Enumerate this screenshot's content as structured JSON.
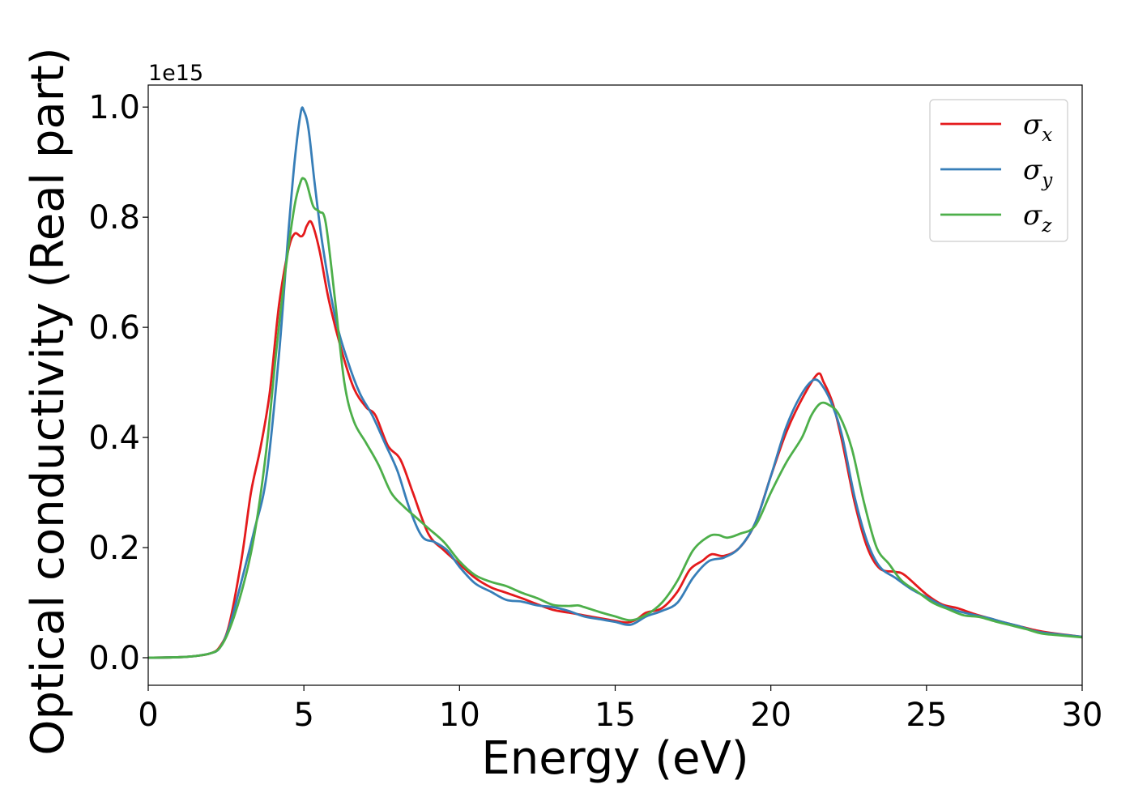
{
  "chart_data": {
    "type": "line",
    "xlabel": "Energy (eV)",
    "ylabel": "Optical conductivity (Real part)",
    "y_offset_text": "1e15",
    "xlim": [
      0,
      30
    ],
    "ylim": [
      -0.05,
      1.04
    ],
    "x_ticks": [
      0,
      5,
      10,
      15,
      20,
      25,
      30
    ],
    "x_tick_labels": [
      "0",
      "5",
      "10",
      "15",
      "20",
      "25",
      "30"
    ],
    "y_ticks": [
      0.0,
      0.2,
      0.4,
      0.6,
      0.8,
      1.0
    ],
    "y_tick_labels": [
      "0.0",
      "0.2",
      "0.4",
      "0.6",
      "0.8",
      "1.0"
    ],
    "grid": false,
    "legend_position": "top-right",
    "series": [
      {
        "name": "σx",
        "legend_main": "σ",
        "legend_sub": "x",
        "color": "#e41a1c",
        "points": [
          [
            0,
            0
          ],
          [
            1,
            0.001
          ],
          [
            1.5,
            0.003
          ],
          [
            2,
            0.008
          ],
          [
            2.3,
            0.02
          ],
          [
            2.6,
            0.06
          ],
          [
            3,
            0.18
          ],
          [
            3.3,
            0.3
          ],
          [
            3.6,
            0.38
          ],
          [
            3.9,
            0.48
          ],
          [
            4.2,
            0.64
          ],
          [
            4.5,
            0.74
          ],
          [
            4.7,
            0.77
          ],
          [
            4.9,
            0.765
          ],
          [
            5,
            0.77
          ],
          [
            5.1,
            0.785
          ],
          [
            5.25,
            0.79
          ],
          [
            5.5,
            0.74
          ],
          [
            5.8,
            0.65
          ],
          [
            6.2,
            0.56
          ],
          [
            6.6,
            0.49
          ],
          [
            7,
            0.455
          ],
          [
            7.3,
            0.44
          ],
          [
            7.7,
            0.385
          ],
          [
            8.1,
            0.36
          ],
          [
            8.5,
            0.3
          ],
          [
            9,
            0.225
          ],
          [
            9.5,
            0.195
          ],
          [
            10,
            0.17
          ],
          [
            10.5,
            0.145
          ],
          [
            11,
            0.128
          ],
          [
            11.5,
            0.118
          ],
          [
            12,
            0.108
          ],
          [
            12.5,
            0.097
          ],
          [
            13,
            0.087
          ],
          [
            13.5,
            0.082
          ],
          [
            14,
            0.077
          ],
          [
            14.5,
            0.072
          ],
          [
            15,
            0.067
          ],
          [
            15.4,
            0.064
          ],
          [
            15.7,
            0.07
          ],
          [
            16,
            0.082
          ],
          [
            16.5,
            0.09
          ],
          [
            17,
            0.12
          ],
          [
            17.4,
            0.16
          ],
          [
            17.8,
            0.176
          ],
          [
            18.1,
            0.188
          ],
          [
            18.5,
            0.185
          ],
          [
            19,
            0.2
          ],
          [
            19.5,
            0.245
          ],
          [
            20,
            0.33
          ],
          [
            20.5,
            0.41
          ],
          [
            21,
            0.47
          ],
          [
            21.5,
            0.515
          ],
          [
            21.7,
            0.5
          ],
          [
            22,
            0.46
          ],
          [
            22.3,
            0.39
          ],
          [
            22.7,
            0.28
          ],
          [
            23.1,
            0.2
          ],
          [
            23.5,
            0.162
          ],
          [
            24,
            0.156
          ],
          [
            24.3,
            0.15
          ],
          [
            25,
            0.115
          ],
          [
            25.5,
            0.097
          ],
          [
            26,
            0.09
          ],
          [
            26.5,
            0.08
          ],
          [
            27,
            0.072
          ],
          [
            27.5,
            0.064
          ],
          [
            28,
            0.057
          ],
          [
            28.5,
            0.05
          ],
          [
            29,
            0.045
          ],
          [
            30,
            0.038
          ]
        ]
      },
      {
        "name": "σy",
        "legend_main": "σ",
        "legend_sub": "y",
        "color": "#377eb8",
        "points": [
          [
            0,
            0
          ],
          [
            1,
            0.001
          ],
          [
            1.5,
            0.003
          ],
          [
            2,
            0.008
          ],
          [
            2.3,
            0.018
          ],
          [
            2.6,
            0.055
          ],
          [
            3,
            0.14
          ],
          [
            3.4,
            0.23
          ],
          [
            3.8,
            0.33
          ],
          [
            4.2,
            0.55
          ],
          [
            4.5,
            0.77
          ],
          [
            4.7,
            0.9
          ],
          [
            4.9,
            0.99
          ],
          [
            5,
            0.993
          ],
          [
            5.15,
            0.96
          ],
          [
            5.35,
            0.86
          ],
          [
            5.6,
            0.75
          ],
          [
            6,
            0.62
          ],
          [
            6.4,
            0.54
          ],
          [
            6.8,
            0.48
          ],
          [
            7.2,
            0.44
          ],
          [
            7.6,
            0.39
          ],
          [
            8,
            0.34
          ],
          [
            8.4,
            0.27
          ],
          [
            8.8,
            0.22
          ],
          [
            9.2,
            0.21
          ],
          [
            9.6,
            0.195
          ],
          [
            10,
            0.165
          ],
          [
            10.5,
            0.135
          ],
          [
            11,
            0.12
          ],
          [
            11.5,
            0.105
          ],
          [
            12,
            0.102
          ],
          [
            12.5,
            0.095
          ],
          [
            13,
            0.092
          ],
          [
            13.5,
            0.085
          ],
          [
            14,
            0.075
          ],
          [
            14.5,
            0.07
          ],
          [
            15,
            0.065
          ],
          [
            15.5,
            0.06
          ],
          [
            16,
            0.075
          ],
          [
            16.5,
            0.085
          ],
          [
            17,
            0.1
          ],
          [
            17.5,
            0.145
          ],
          [
            18,
            0.175
          ],
          [
            18.5,
            0.182
          ],
          [
            19,
            0.2
          ],
          [
            19.5,
            0.245
          ],
          [
            20,
            0.33
          ],
          [
            20.5,
            0.42
          ],
          [
            21,
            0.48
          ],
          [
            21.4,
            0.505
          ],
          [
            21.7,
            0.49
          ],
          [
            22,
            0.455
          ],
          [
            22.3,
            0.4
          ],
          [
            22.7,
            0.29
          ],
          [
            23.1,
            0.21
          ],
          [
            23.5,
            0.165
          ],
          [
            24,
            0.145
          ],
          [
            24.5,
            0.125
          ],
          [
            25,
            0.11
          ],
          [
            25.5,
            0.095
          ],
          [
            26,
            0.085
          ],
          [
            26.5,
            0.078
          ],
          [
            27,
            0.072
          ],
          [
            27.5,
            0.064
          ],
          [
            28,
            0.057
          ],
          [
            28.5,
            0.048
          ],
          [
            29,
            0.044
          ],
          [
            30,
            0.038
          ]
        ]
      },
      {
        "name": "σz",
        "legend_main": "σ",
        "legend_sub": "z",
        "color": "#4daf4a",
        "points": [
          [
            0,
            0
          ],
          [
            1,
            0.001
          ],
          [
            1.5,
            0.003
          ],
          [
            2,
            0.008
          ],
          [
            2.3,
            0.018
          ],
          [
            2.6,
            0.05
          ],
          [
            3,
            0.12
          ],
          [
            3.4,
            0.22
          ],
          [
            3.8,
            0.38
          ],
          [
            4.1,
            0.55
          ],
          [
            4.4,
            0.7
          ],
          [
            4.7,
            0.82
          ],
          [
            4.9,
            0.865
          ],
          [
            5,
            0.87
          ],
          [
            5.1,
            0.86
          ],
          [
            5.3,
            0.82
          ],
          [
            5.5,
            0.81
          ],
          [
            5.7,
            0.79
          ],
          [
            6,
            0.65
          ],
          [
            6.3,
            0.5
          ],
          [
            6.6,
            0.43
          ],
          [
            7,
            0.39
          ],
          [
            7.4,
            0.35
          ],
          [
            7.8,
            0.3
          ],
          [
            8.2,
            0.275
          ],
          [
            8.6,
            0.255
          ],
          [
            9,
            0.235
          ],
          [
            9.5,
            0.21
          ],
          [
            10,
            0.175
          ],
          [
            10.5,
            0.15
          ],
          [
            11,
            0.138
          ],
          [
            11.5,
            0.13
          ],
          [
            12,
            0.118
          ],
          [
            12.5,
            0.108
          ],
          [
            13,
            0.096
          ],
          [
            13.5,
            0.094
          ],
          [
            13.8,
            0.095
          ],
          [
            14,
            0.092
          ],
          [
            14.5,
            0.083
          ],
          [
            15,
            0.075
          ],
          [
            15.5,
            0.068
          ],
          [
            16,
            0.078
          ],
          [
            16.5,
            0.1
          ],
          [
            17,
            0.14
          ],
          [
            17.5,
            0.195
          ],
          [
            18,
            0.22
          ],
          [
            18.3,
            0.223
          ],
          [
            18.6,
            0.218
          ],
          [
            19,
            0.225
          ],
          [
            19.5,
            0.24
          ],
          [
            20,
            0.3
          ],
          [
            20.5,
            0.355
          ],
          [
            21,
            0.4
          ],
          [
            21.3,
            0.44
          ],
          [
            21.6,
            0.462
          ],
          [
            21.9,
            0.458
          ],
          [
            22.2,
            0.44
          ],
          [
            22.6,
            0.38
          ],
          [
            23,
            0.28
          ],
          [
            23.4,
            0.2
          ],
          [
            23.8,
            0.17
          ],
          [
            24.2,
            0.14
          ],
          [
            24.7,
            0.12
          ],
          [
            25.2,
            0.1
          ],
          [
            25.7,
            0.088
          ],
          [
            26.2,
            0.077
          ],
          [
            26.7,
            0.074
          ],
          [
            27.2,
            0.066
          ],
          [
            27.7,
            0.059
          ],
          [
            28.2,
            0.052
          ],
          [
            28.7,
            0.044
          ],
          [
            29.2,
            0.041
          ],
          [
            30,
            0.037
          ]
        ]
      }
    ]
  }
}
